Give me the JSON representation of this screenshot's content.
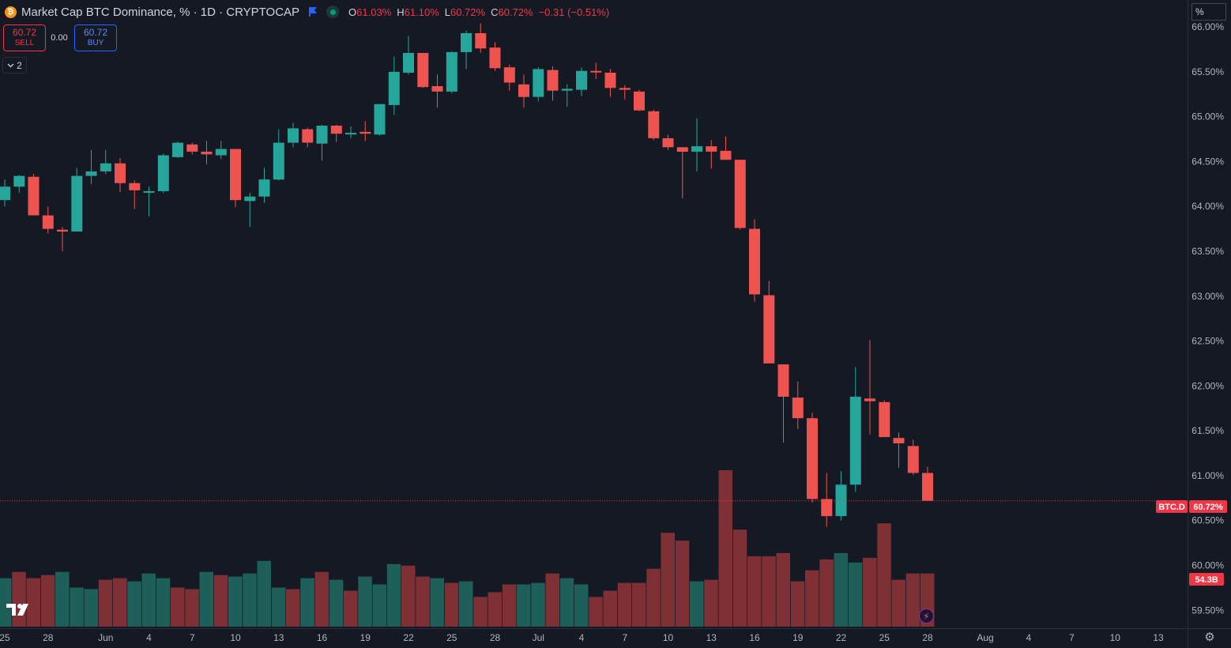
{
  "header": {
    "coin_glyph": "₿",
    "symbol_title": "Market Cap BTC Dominance, % · 1D · CRYPTOCAP",
    "ohlc": {
      "o_label": "O",
      "o_value": "61.03%",
      "h_label": "H",
      "h_value": "61.10%",
      "l_label": "L",
      "l_value": "60.72%",
      "c_label": "C",
      "c_value": "60.72%",
      "change": "−0.31 (−0.51%)"
    }
  },
  "trade": {
    "sell_price": "60.72",
    "sell_label": "SELL",
    "spread": "0.00",
    "buy_price": "60.72",
    "buy_label": "BUY"
  },
  "indicators_toggle": {
    "count": "2"
  },
  "price_axis": {
    "unit_box": "%",
    "last_symbol": "BTC.D",
    "last_value": "60.72%",
    "volume_value": "54.3B"
  },
  "colors": {
    "background": "#151924",
    "up": "#26a69a",
    "down": "#ef5350",
    "up_volume": "#1f5f5a",
    "down_volume": "#7e3035",
    "grid_text": "#b2b5be",
    "last_price_tag": "#f23645"
  },
  "icons": [
    "bitcoin-icon",
    "flag-icon",
    "live-status-icon",
    "chevron-down-icon",
    "tradingview-logo-icon",
    "lightning-icon",
    "settings-icon"
  ],
  "chart_data": {
    "type": "candlestick",
    "title": "Market Cap BTC Dominance, % · 1D · CRYPTOCAP",
    "ylim": [
      59.3,
      66.3
    ],
    "y_ticks": [
      "66.00%",
      "65.50%",
      "65.00%",
      "64.50%",
      "64.00%",
      "63.50%",
      "63.00%",
      "62.50%",
      "62.00%",
      "61.50%",
      "61.00%",
      "60.50%",
      "60.00%",
      "59.50%"
    ],
    "y_tick_values": [
      66.0,
      65.5,
      65.0,
      64.5,
      64.0,
      63.5,
      63.0,
      62.5,
      62.0,
      61.5,
      61.0,
      60.5,
      60.0,
      59.5
    ],
    "x_ticks": [
      {
        "label": "25",
        "day": 0
      },
      {
        "label": "28",
        "day": 3
      },
      {
        "label": "Jun",
        "day": 7
      },
      {
        "label": "4",
        "day": 10
      },
      {
        "label": "7",
        "day": 13
      },
      {
        "label": "10",
        "day": 16
      },
      {
        "label": "13",
        "day": 19
      },
      {
        "label": "16",
        "day": 22
      },
      {
        "label": "19",
        "day": 25
      },
      {
        "label": "22",
        "day": 28
      },
      {
        "label": "25",
        "day": 31
      },
      {
        "label": "28",
        "day": 34
      },
      {
        "label": "Jul",
        "day": 37
      },
      {
        "label": "4",
        "day": 40
      },
      {
        "label": "7",
        "day": 43
      },
      {
        "label": "10",
        "day": 46
      },
      {
        "label": "13",
        "day": 49
      },
      {
        "label": "16",
        "day": 52
      },
      {
        "label": "19",
        "day": 55
      },
      {
        "label": "22",
        "day": 58
      },
      {
        "label": "25",
        "day": 61
      },
      {
        "label": "28",
        "day": 64
      },
      {
        "label": "Aug",
        "day": 68
      },
      {
        "label": "4",
        "day": 71
      },
      {
        "label": "7",
        "day": 74
      },
      {
        "label": "10",
        "day": 77
      },
      {
        "label": "13",
        "day": 80
      }
    ],
    "last_price": 60.72,
    "candles": [
      {
        "o": 64.07,
        "h": 64.3,
        "l": 64.0,
        "c": 64.22
      },
      {
        "o": 64.22,
        "h": 64.35,
        "l": 64.15,
        "c": 64.34
      },
      {
        "o": 64.33,
        "h": 64.36,
        "l": 63.9,
        "c": 63.9
      },
      {
        "o": 63.9,
        "h": 64.0,
        "l": 63.7,
        "c": 63.75
      },
      {
        "o": 63.74,
        "h": 63.77,
        "l": 63.5,
        "c": 63.72
      },
      {
        "o": 63.72,
        "h": 64.43,
        "l": 63.72,
        "c": 64.34
      },
      {
        "o": 64.34,
        "h": 64.63,
        "l": 64.25,
        "c": 64.39
      },
      {
        "o": 64.39,
        "h": 64.63,
        "l": 64.36,
        "c": 64.48
      },
      {
        "o": 64.48,
        "h": 64.54,
        "l": 64.16,
        "c": 64.26
      },
      {
        "o": 64.26,
        "h": 64.29,
        "l": 63.97,
        "c": 64.18
      },
      {
        "o": 64.16,
        "h": 64.22,
        "l": 63.89,
        "c": 64.17
      },
      {
        "o": 64.17,
        "h": 64.59,
        "l": 64.15,
        "c": 64.57
      },
      {
        "o": 64.55,
        "h": 64.72,
        "l": 64.54,
        "c": 64.71
      },
      {
        "o": 64.69,
        "h": 64.71,
        "l": 64.58,
        "c": 64.61
      },
      {
        "o": 64.61,
        "h": 64.73,
        "l": 64.47,
        "c": 64.58
      },
      {
        "o": 64.57,
        "h": 64.73,
        "l": 64.53,
        "c": 64.64
      },
      {
        "o": 64.64,
        "h": 64.63,
        "l": 63.99,
        "c": 64.07
      },
      {
        "o": 64.06,
        "h": 64.15,
        "l": 63.77,
        "c": 64.11
      },
      {
        "o": 64.11,
        "h": 64.43,
        "l": 64.04,
        "c": 64.3
      },
      {
        "o": 64.3,
        "h": 64.86,
        "l": 64.29,
        "c": 64.71
      },
      {
        "o": 64.71,
        "h": 64.93,
        "l": 64.66,
        "c": 64.87
      },
      {
        "o": 64.86,
        "h": 64.88,
        "l": 64.66,
        "c": 64.71
      },
      {
        "o": 64.7,
        "h": 64.91,
        "l": 64.51,
        "c": 64.9
      },
      {
        "o": 64.9,
        "h": 64.91,
        "l": 64.72,
        "c": 64.81
      },
      {
        "o": 64.82,
        "h": 64.89,
        "l": 64.76,
        "c": 64.82
      },
      {
        "o": 64.83,
        "h": 64.95,
        "l": 64.73,
        "c": 64.81
      },
      {
        "o": 64.8,
        "h": 65.13,
        "l": 64.79,
        "c": 65.14
      },
      {
        "o": 65.13,
        "h": 65.67,
        "l": 65.02,
        "c": 65.5
      },
      {
        "o": 65.49,
        "h": 65.9,
        "l": 65.47,
        "c": 65.71
      },
      {
        "o": 65.71,
        "h": 65.69,
        "l": 65.32,
        "c": 65.33
      },
      {
        "o": 65.34,
        "h": 65.47,
        "l": 65.1,
        "c": 65.28
      },
      {
        "o": 65.28,
        "h": 65.73,
        "l": 65.26,
        "c": 65.72
      },
      {
        "o": 65.72,
        "h": 65.96,
        "l": 65.53,
        "c": 65.93
      },
      {
        "o": 65.93,
        "h": 66.04,
        "l": 65.71,
        "c": 65.76
      },
      {
        "o": 65.77,
        "h": 65.83,
        "l": 65.51,
        "c": 65.54
      },
      {
        "o": 65.55,
        "h": 65.58,
        "l": 65.29,
        "c": 65.38
      },
      {
        "o": 65.36,
        "h": 65.47,
        "l": 65.1,
        "c": 65.22
      },
      {
        "o": 65.22,
        "h": 65.55,
        "l": 65.17,
        "c": 65.53
      },
      {
        "o": 65.52,
        "h": 65.56,
        "l": 65.18,
        "c": 65.29
      },
      {
        "o": 65.29,
        "h": 65.36,
        "l": 65.11,
        "c": 65.31
      },
      {
        "o": 65.3,
        "h": 65.55,
        "l": 65.23,
        "c": 65.51
      },
      {
        "o": 65.51,
        "h": 65.6,
        "l": 65.42,
        "c": 65.5
      },
      {
        "o": 65.49,
        "h": 65.53,
        "l": 65.22,
        "c": 65.32
      },
      {
        "o": 65.32,
        "h": 65.35,
        "l": 65.19,
        "c": 65.3
      },
      {
        "o": 65.28,
        "h": 65.3,
        "l": 65.06,
        "c": 65.07
      },
      {
        "o": 65.06,
        "h": 65.08,
        "l": 64.74,
        "c": 64.76
      },
      {
        "o": 64.76,
        "h": 64.8,
        "l": 64.63,
        "c": 64.66
      },
      {
        "o": 64.66,
        "h": 64.63,
        "l": 64.09,
        "c": 64.61
      },
      {
        "o": 64.61,
        "h": 64.98,
        "l": 64.39,
        "c": 64.67
      },
      {
        "o": 64.67,
        "h": 64.74,
        "l": 64.42,
        "c": 64.61
      },
      {
        "o": 64.62,
        "h": 64.78,
        "l": 64.52,
        "c": 64.52
      },
      {
        "o": 64.52,
        "h": 64.52,
        "l": 63.74,
        "c": 63.76
      },
      {
        "o": 63.75,
        "h": 63.86,
        "l": 62.94,
        "c": 63.02
      },
      {
        "o": 63.01,
        "h": 63.17,
        "l": 62.25,
        "c": 62.25
      },
      {
        "o": 62.24,
        "h": 62.23,
        "l": 61.37,
        "c": 61.88
      },
      {
        "o": 61.87,
        "h": 62.05,
        "l": 61.52,
        "c": 61.64
      },
      {
        "o": 61.64,
        "h": 61.7,
        "l": 60.7,
        "c": 60.74
      },
      {
        "o": 60.74,
        "h": 61.03,
        "l": 60.43,
        "c": 60.55
      },
      {
        "o": 60.55,
        "h": 61.05,
        "l": 60.5,
        "c": 60.9
      },
      {
        "o": 60.9,
        "h": 62.21,
        "l": 60.82,
        "c": 61.88
      },
      {
        "o": 61.86,
        "h": 62.51,
        "l": 61.46,
        "c": 61.83
      },
      {
        "o": 61.82,
        "h": 61.84,
        "l": 61.43,
        "c": 61.43
      },
      {
        "o": 61.42,
        "h": 61.48,
        "l": 61.09,
        "c": 61.36
      },
      {
        "o": 61.33,
        "h": 61.4,
        "l": 61.01,
        "c": 61.03
      },
      {
        "o": 61.03,
        "h": 61.1,
        "l": 60.72,
        "c": 60.72
      }
    ],
    "volume": {
      "unit": "B",
      "ylim": [
        0,
        100
      ],
      "values": [
        {
          "v": 31,
          "up": true
        },
        {
          "v": 35,
          "up": false
        },
        {
          "v": 31,
          "up": false
        },
        {
          "v": 33,
          "up": false
        },
        {
          "v": 35,
          "up": true
        },
        {
          "v": 25,
          "up": true
        },
        {
          "v": 24,
          "up": true
        },
        {
          "v": 30,
          "up": false
        },
        {
          "v": 31,
          "up": false
        },
        {
          "v": 29,
          "up": true
        },
        {
          "v": 34,
          "up": true
        },
        {
          "v": 31,
          "up": true
        },
        {
          "v": 25,
          "up": false
        },
        {
          "v": 24,
          "up": false
        },
        {
          "v": 35,
          "up": true
        },
        {
          "v": 33,
          "up": false
        },
        {
          "v": 32,
          "up": true
        },
        {
          "v": 34,
          "up": true
        },
        {
          "v": 42,
          "up": true
        },
        {
          "v": 25,
          "up": true
        },
        {
          "v": 24,
          "up": false
        },
        {
          "v": 31,
          "up": true
        },
        {
          "v": 35,
          "up": false
        },
        {
          "v": 30,
          "up": true
        },
        {
          "v": 23,
          "up": false
        },
        {
          "v": 32,
          "up": true
        },
        {
          "v": 27,
          "up": true
        },
        {
          "v": 40,
          "up": true
        },
        {
          "v": 39,
          "up": false
        },
        {
          "v": 32,
          "up": false
        },
        {
          "v": 31,
          "up": true
        },
        {
          "v": 28,
          "up": false
        },
        {
          "v": 29,
          "up": true
        },
        {
          "v": 19,
          "up": false
        },
        {
          "v": 22,
          "up": false
        },
        {
          "v": 27,
          "up": false
        },
        {
          "v": 27,
          "up": true
        },
        {
          "v": 28,
          "up": true
        },
        {
          "v": 34,
          "up": false
        },
        {
          "v": 31,
          "up": true
        },
        {
          "v": 27,
          "up": true
        },
        {
          "v": 19,
          "up": false
        },
        {
          "v": 23,
          "up": false
        },
        {
          "v": 28,
          "up": false
        },
        {
          "v": 28,
          "up": false
        },
        {
          "v": 37,
          "up": false
        },
        {
          "v": 60,
          "up": false
        },
        {
          "v": 55,
          "up": false
        },
        {
          "v": 29,
          "up": true
        },
        {
          "v": 30,
          "up": false
        },
        {
          "v": 100,
          "up": false
        },
        {
          "v": 62,
          "up": false
        },
        {
          "v": 45,
          "up": false
        },
        {
          "v": 45,
          "up": false
        },
        {
          "v": 47,
          "up": false
        },
        {
          "v": 29,
          "up": false
        },
        {
          "v": 36,
          "up": false
        },
        {
          "v": 43,
          "up": false
        },
        {
          "v": 47,
          "up": true
        },
        {
          "v": 41,
          "up": true
        },
        {
          "v": 44,
          "up": false
        },
        {
          "v": 66,
          "up": false
        },
        {
          "v": 30,
          "up": false
        },
        {
          "v": 34,
          "up": false
        },
        {
          "v": 34,
          "up": false
        }
      ]
    }
  }
}
